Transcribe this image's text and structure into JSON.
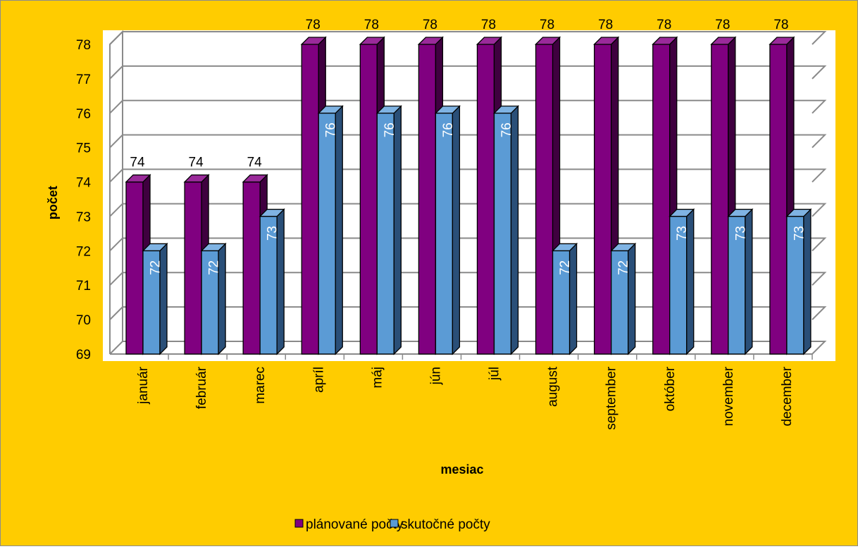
{
  "colors": {
    "background": "#ffcc00",
    "plot_area": "#ffffff",
    "planned_front": "#800080",
    "planned_side": "#3f003f",
    "planned_top": "#9a2a9a",
    "actual_front": "#5b9bd5",
    "actual_side": "#2a4f78",
    "actual_top": "#7fb3e3",
    "gridline": "#8a8a8a",
    "text": "#000000",
    "data_label_inside": "#ffffff"
  },
  "chart_data": {
    "type": "bar",
    "style": "3d-clustered-column",
    "title": "",
    "xlabel": "mesiac",
    "ylabel": "počet",
    "ylim": [
      69,
      78
    ],
    "yticks": [
      69,
      70,
      71,
      72,
      73,
      74,
      75,
      76,
      77,
      78
    ],
    "grid": true,
    "legend_position": "bottom",
    "categories": [
      "január",
      "február",
      "marec",
      "apríl",
      "máj",
      "jún",
      "júl",
      "august",
      "september",
      "október",
      "november",
      "december"
    ],
    "series": [
      {
        "name": "plánované počty",
        "color": "#800080",
        "values": [
          74,
          74,
          74,
          78,
          78,
          78,
          78,
          78,
          78,
          78,
          78,
          78
        ],
        "labels": [
          "74",
          "74",
          "74",
          "78",
          "78",
          "78",
          "78",
          "78",
          "78",
          "78",
          "78",
          "78"
        ]
      },
      {
        "name": "skutočné počty",
        "color": "#5b9bd5",
        "values": [
          72,
          72,
          73,
          76,
          76,
          76,
          76,
          72,
          72,
          73,
          73,
          73
        ],
        "labels": [
          "72",
          "72",
          "73",
          "76",
          "76",
          "76",
          "76",
          "72",
          "72",
          "73",
          "73",
          "73"
        ]
      }
    ]
  }
}
